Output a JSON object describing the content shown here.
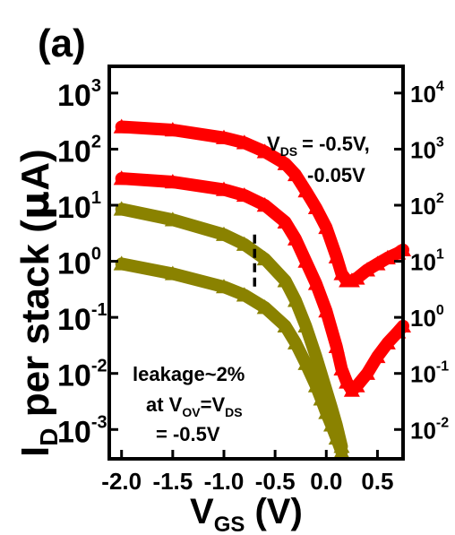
{
  "panel_label": "(a)",
  "chart_data": {
    "type": "line",
    "xlabel": {
      "main": "V",
      "sub": "GS",
      "rest": " (V)"
    },
    "ylabel": {
      "main": "I",
      "sub": "D",
      "rest": " per stack (",
      "greek": "μ",
      "rest2": "A)"
    },
    "x_ticks": [
      "-2.0",
      "-1.5",
      "-1.0",
      "-0.5",
      "0.0",
      "0.5"
    ],
    "x_tick_values": [
      -2.0,
      -1.5,
      -1.0,
      -0.5,
      0.0,
      0.5
    ],
    "xlim": [
      -2.12,
      0.75
    ],
    "y_left": {
      "scale": "log",
      "ylim": [
        0.0003,
        3000
      ],
      "ticks": [
        {
          "value": 1000,
          "base": "10",
          "exp": "3"
        },
        {
          "value": 100,
          "base": "10",
          "exp": "2"
        },
        {
          "value": 10,
          "base": "10",
          "exp": "1"
        },
        {
          "value": 1,
          "base": "10",
          "exp": "0"
        },
        {
          "value": 0.1,
          "base": "10",
          "exp": "-1"
        },
        {
          "value": 0.01,
          "base": "10",
          "exp": "-2"
        },
        {
          "value": 0.001,
          "base": "10",
          "exp": "-3"
        }
      ]
    },
    "y_right": {
      "scale": "log",
      "ylim": [
        0.003,
        30000
      ],
      "ticks": [
        {
          "value": 10000,
          "base": "10",
          "exp": "4"
        },
        {
          "value": 1000,
          "base": "10",
          "exp": "3"
        },
        {
          "value": 100,
          "base": "10",
          "exp": "2"
        },
        {
          "value": 10,
          "base": "10",
          "exp": "1"
        },
        {
          "value": 1,
          "base": "10",
          "exp": "0"
        },
        {
          "value": 0.1,
          "base": "10",
          "exp": "-1"
        },
        {
          "value": 0.01,
          "base": "10",
          "exp": "-2"
        }
      ]
    },
    "colors": {
      "red": "#ff0000",
      "olive": "#8a8200",
      "dashed": "#000000"
    },
    "series": [
      {
        "axis": "right",
        "color": "red",
        "marker": "triangle",
        "x": [
          -2.0,
          -1.5,
          -1.0,
          -0.8,
          -0.6,
          -0.4,
          -0.3,
          -0.2,
          -0.1,
          0.0,
          0.1,
          0.15,
          0.2,
          0.25,
          0.3,
          0.4,
          0.5,
          0.6,
          0.7,
          0.75
        ],
        "y": [
          2500,
          2200,
          1600,
          1300,
          900,
          550,
          350,
          180,
          90,
          40,
          12,
          6,
          4.5,
          4.5,
          5,
          7,
          9,
          11.5,
          14,
          16
        ]
      },
      {
        "axis": "right",
        "color": "red",
        "marker": "triangle",
        "x": [
          -2.0,
          -1.5,
          -1.0,
          -0.8,
          -0.6,
          -0.4,
          -0.3,
          -0.2,
          -0.1,
          0.0,
          0.1,
          0.15,
          0.2,
          0.25,
          0.3,
          0.4,
          0.5,
          0.6,
          0.7,
          0.75
        ],
        "y": [
          300,
          260,
          190,
          150,
          100,
          50,
          25,
          10,
          4,
          1.3,
          0.3,
          0.12,
          0.07,
          0.05,
          0.06,
          0.1,
          0.2,
          0.35,
          0.55,
          0.7
        ]
      },
      {
        "axis": "left",
        "color": "olive",
        "marker": "triangle",
        "x": [
          -2.0,
          -1.5,
          -1.0,
          -0.8,
          -0.6,
          -0.4,
          -0.3,
          -0.2,
          -0.1,
          -0.05,
          0.0,
          0.05,
          0.1,
          0.15
        ],
        "y": [
          8.5,
          5.5,
          3.0,
          2.0,
          1.1,
          0.45,
          0.2,
          0.07,
          0.02,
          0.01,
          0.005,
          0.0025,
          0.0012,
          0.0005
        ]
      },
      {
        "axis": "left",
        "color": "olive",
        "marker": "triangle",
        "x": [
          -2.0,
          -1.5,
          -1.0,
          -0.8,
          -0.6,
          -0.4,
          -0.3,
          -0.2,
          -0.1,
          -0.05,
          0.0,
          0.05,
          0.1,
          0.15
        ],
        "y": [
          0.9,
          0.6,
          0.35,
          0.25,
          0.15,
          0.07,
          0.035,
          0.015,
          0.006,
          0.0035,
          0.002,
          0.0012,
          0.0007,
          0.0004
        ]
      }
    ],
    "dashed_marker": {
      "x": -0.7,
      "y_top": 30,
      "y_bottom": 3.4
    },
    "annotations": {
      "vds": {
        "a": "V",
        "a_sub": "DS",
        "b": "= -0.5V,",
        "c": "-0.05V"
      },
      "leakage": {
        "l1": "leakage~2%",
        "l2a": "at V",
        "l2a_sub": "OV",
        "l2b": "=V",
        "l2b_sub": "DS",
        "l3": "= -0.5V"
      }
    }
  }
}
